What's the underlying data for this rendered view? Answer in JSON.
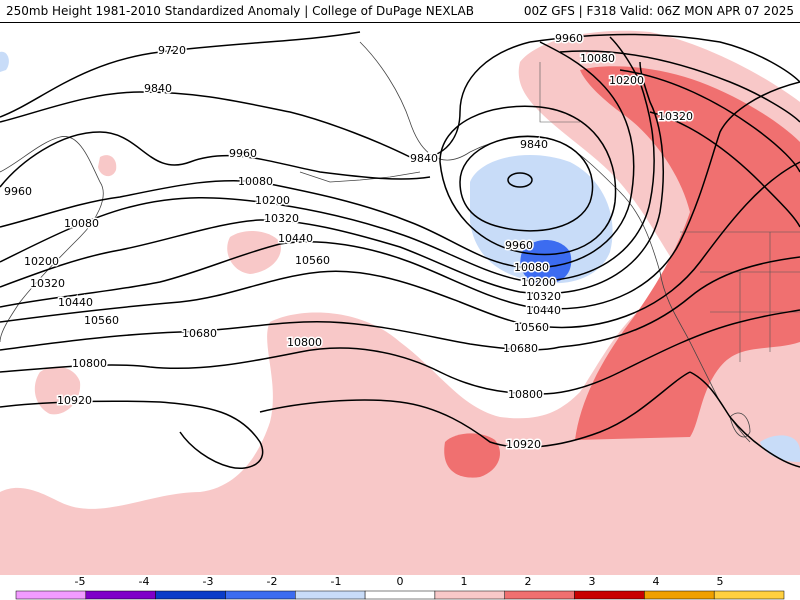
{
  "header": {
    "left_title": "250mb Height 1981-2010 Standardized Anomaly | College of DuPage NEXLAB",
    "right_title": "00Z GFS | F318 Valid: 06Z MON APR 07 2025"
  },
  "map": {
    "contour_labels": [
      {
        "text": "9720"
      },
      {
        "text": "9840"
      },
      {
        "text": "9960"
      },
      {
        "text": "9960"
      },
      {
        "text": "10080"
      },
      {
        "text": "10080"
      },
      {
        "text": "10200"
      },
      {
        "text": "10200"
      },
      {
        "text": "10320"
      },
      {
        "text": "10320"
      },
      {
        "text": "10440"
      },
      {
        "text": "10440"
      },
      {
        "text": "10560"
      },
      {
        "text": "10560"
      },
      {
        "text": "10680"
      },
      {
        "text": "10800"
      },
      {
        "text": "10800"
      },
      {
        "text": "10920"
      },
      {
        "text": "9840"
      },
      {
        "text": "9840"
      },
      {
        "text": "9960"
      },
      {
        "text": "10080"
      },
      {
        "text": "10200"
      },
      {
        "text": "10320"
      },
      {
        "text": "10440"
      },
      {
        "text": "10560"
      },
      {
        "text": "10680"
      },
      {
        "text": "10800"
      },
      {
        "text": "10920"
      },
      {
        "text": "9960"
      },
      {
        "text": "10080"
      },
      {
        "text": "10200"
      },
      {
        "text": "10320"
      }
    ]
  },
  "colorbar": {
    "ticks": [
      "-5",
      "-4",
      "-3",
      "-2",
      "-1",
      "0",
      "1",
      "2",
      "3",
      "4",
      "5"
    ],
    "colors": [
      "#f29bff",
      "#7f00c8",
      "#0a3cc8",
      "#3c6cf0",
      "#c8dcf8",
      "#ffffff",
      "#f8c8c8",
      "#f07070",
      "#c80000",
      "#f0a000",
      "#ffd040"
    ]
  }
}
